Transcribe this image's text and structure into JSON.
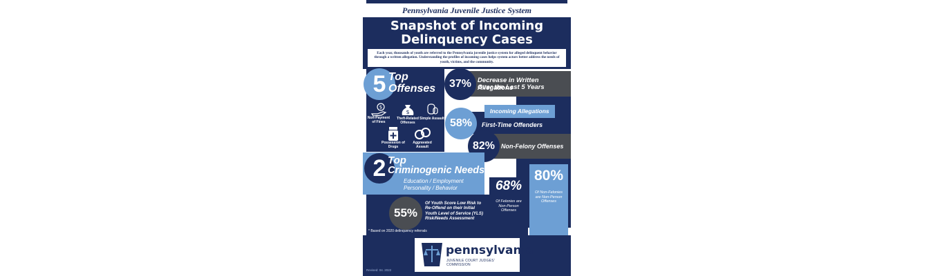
{
  "header": "Pennsylvania Juvenile Justice System",
  "title_line1": "Snapshot of Incoming",
  "title_line2": "Delinquency Cases",
  "intro": "Each year, thousands of youth are referred to the Pennsylvania juvenile justice system for alleged delinquent behavior through a written allegation. Understanding the profiles of incoming cases helps system actors better address the needs of youth, victims, and the community.",
  "top_offenses": {
    "number": "5",
    "top": "Top",
    "label": "Offenses",
    "items": [
      {
        "icon": "hand-coin-icon",
        "label": "Non-Payment of Fines"
      },
      {
        "icon": "money-bag-icon",
        "label": "Theft-Related Offenses"
      },
      {
        "icon": "fist-icon",
        "label": "Simple Assault"
      },
      {
        "icon": "pill-bottle-icon",
        "label": "Possession of Drugs"
      },
      {
        "icon": "handcuffs-icon",
        "label": "Aggravated Assault"
      }
    ]
  },
  "stat_decrease": {
    "value": "37%",
    "line1": "Decrease in Written Allegations",
    "line2": "Over the Last 5 Years"
  },
  "incoming_allegations": "Incoming Allegations",
  "stat_first_time": {
    "value": "58%",
    "label": "First-Time Offenders"
  },
  "stat_non_felony": {
    "value": "82%",
    "label": "Non-Felony Offenses"
  },
  "criminogenic": {
    "number": "2",
    "top": "Top",
    "label": "Criminogenic Needs",
    "line1": "Education / Employment",
    "line2": "Personality / Behavior"
  },
  "stat_felonies": {
    "value": "68%",
    "label": "Of Felonies are Non-Person Offenses"
  },
  "stat_nonfelonies": {
    "value": "80%",
    "label": "Of Non-Felonies are Non-Person Offenses"
  },
  "stat_low_risk": {
    "value": "55%",
    "label": "Of Youth Score Low Risk to Re-Offend on their Initial Youth Level of Service (YLS) Risk/Needs Assessment"
  },
  "footnote": "* Based on 2020 delinquency referrals",
  "logo": {
    "word": "pennsylvania",
    "sub": "JUVENILE COURT JUDGES' COMMISSION"
  },
  "revised": "Revised: 04. 2022",
  "colors": {
    "navy": "#1c2d5e",
    "light_blue": "#6d9fd4",
    "gray": "#4a4d52"
  }
}
